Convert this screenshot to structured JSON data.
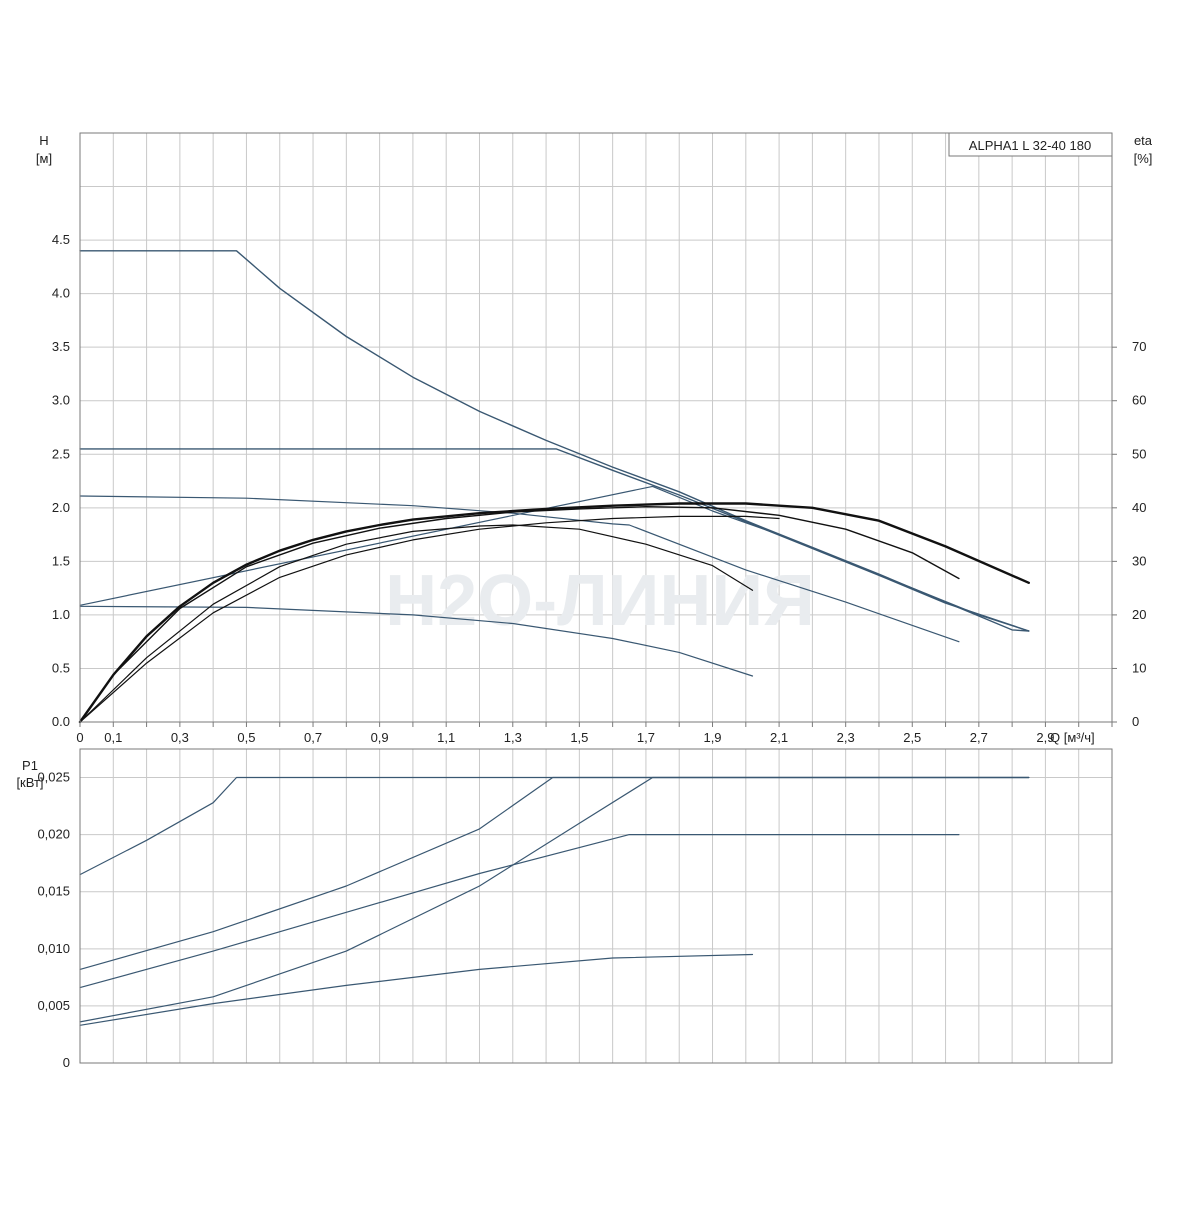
{
  "legend": "ALPHA1 L 32-40 180",
  "watermark": "H2O-ЛИНИЯ",
  "colors": {
    "curve": "#3a5872",
    "eta": "#111111",
    "grid": "#c9c9c9",
    "frame": "#7a7a7a",
    "watermark": "#e9ecef"
  },
  "chart_data": [
    {
      "type": "line",
      "name": "head",
      "ylabel": "H",
      "yunit": "[м]",
      "ylim": [
        0,
        5.5
      ],
      "yticks": [
        0,
        0.5,
        1.0,
        1.5,
        2.0,
        2.5,
        3.0,
        3.5,
        4.0,
        4.5
      ],
      "ytick_labels": [
        "0.0",
        "0.5",
        "1.0",
        "1.5",
        "2.0",
        "2.5",
        "3.0",
        "3.5",
        "4.0",
        "4.5"
      ],
      "xlabel": "Q [м³/ч]",
      "xlim": [
        0,
        3.1
      ],
      "xticks": [
        0,
        0.1,
        0.3,
        0.5,
        0.7,
        0.9,
        1.1,
        1.3,
        1.5,
        1.7,
        1.9,
        2.1,
        2.3,
        2.5,
        2.7,
        2.9
      ],
      "xtick_labels": [
        "0",
        "0,1",
        "0,3",
        "0,5",
        "0,7",
        "0,9",
        "1,1",
        "1,3",
        "1,5",
        "1,7",
        "1,9",
        "2,1",
        "2,3",
        "2,5",
        "2,7",
        "2,9"
      ],
      "x_gridlines": [
        0,
        0.1,
        0.2,
        0.3,
        0.4,
        0.5,
        0.6,
        0.7,
        0.8,
        0.9,
        1.0,
        1.1,
        1.2,
        1.3,
        1.4,
        1.5,
        1.6,
        1.7,
        1.8,
        1.9,
        2.0,
        2.1,
        2.2,
        2.3,
        2.4,
        2.5,
        2.6,
        2.7,
        2.8,
        2.9,
        3.0,
        3.1
      ],
      "y_gridlines": [
        0,
        0.5,
        1.0,
        1.5,
        2.0,
        2.5,
        3.0,
        3.5,
        4.0,
        4.5,
        5.0
      ],
      "y2label": "eta",
      "y2unit": "[%]",
      "y2lim": [
        0,
        110
      ],
      "y2ticks": [
        0,
        10,
        20,
        30,
        40,
        50,
        60,
        70
      ],
      "y2tick_labels": [
        "0",
        "10",
        "20",
        "30",
        "40",
        "50",
        "60",
        "70"
      ],
      "series": [
        {
          "kind": "head",
          "width": 1.4,
          "points": [
            [
              0,
              4.4
            ],
            [
              0.47,
              4.4
            ],
            [
              0.6,
              4.05
            ],
            [
              0.8,
              3.6
            ],
            [
              1.0,
              3.22
            ],
            [
              1.2,
              2.9
            ],
            [
              1.4,
              2.63
            ],
            [
              1.6,
              2.38
            ],
            [
              1.8,
              2.15
            ],
            [
              2.0,
              1.88
            ],
            [
              2.2,
              1.63
            ],
            [
              2.4,
              1.38
            ],
            [
              2.6,
              1.12
            ],
            [
              2.8,
              0.86
            ],
            [
              2.85,
              0.85
            ]
          ]
        },
        {
          "kind": "head",
          "width": 1.4,
          "points": [
            [
              0,
              2.55
            ],
            [
              1.43,
              2.55
            ],
            [
              1.6,
              2.35
            ],
            [
              1.8,
              2.12
            ],
            [
              2.0,
              1.87
            ],
            [
              2.2,
              1.62
            ],
            [
              2.4,
              1.37
            ],
            [
              2.6,
              1.11
            ],
            [
              2.85,
              0.85
            ]
          ]
        },
        {
          "kind": "head",
          "width": 1.2,
          "points": [
            [
              0,
              1.09
            ],
            [
              1.72,
              2.2
            ],
            [
              1.9,
              1.97
            ],
            [
              2.1,
              1.75
            ],
            [
              2.3,
              1.5
            ],
            [
              2.5,
              1.25
            ],
            [
              2.7,
              1.0
            ],
            [
              2.85,
              0.85
            ]
          ]
        },
        {
          "kind": "head",
          "width": 1.2,
          "points": [
            [
              0,
              2.11
            ],
            [
              0.5,
              2.09
            ],
            [
              1.0,
              2.02
            ],
            [
              1.3,
              1.95
            ],
            [
              1.6,
              1.85
            ],
            [
              1.65,
              1.84
            ],
            [
              2.0,
              1.42
            ],
            [
              2.3,
              1.12
            ],
            [
              2.64,
              0.75
            ]
          ]
        },
        {
          "kind": "head",
          "width": 1.2,
          "points": [
            [
              0,
              1.08
            ],
            [
              0.5,
              1.07
            ],
            [
              1.0,
              1.0
            ],
            [
              1.3,
              0.92
            ],
            [
              1.6,
              0.78
            ],
            [
              1.8,
              0.65
            ],
            [
              2.02,
              0.43
            ]
          ]
        },
        {
          "kind": "eta",
          "width": 2.4,
          "points": [
            [
              0,
              0.0
            ],
            [
              0.1,
              0.44
            ],
            [
              0.2,
              0.8
            ],
            [
              0.3,
              1.08
            ],
            [
              0.4,
              1.3
            ],
            [
              0.5,
              1.47
            ],
            [
              0.6,
              1.6
            ],
            [
              0.7,
              1.7
            ],
            [
              0.8,
              1.78
            ],
            [
              0.9,
              1.84
            ],
            [
              1.0,
              1.89
            ],
            [
              1.2,
              1.95
            ],
            [
              1.4,
              1.99
            ],
            [
              1.6,
              2.02
            ],
            [
              1.8,
              2.04
            ],
            [
              2.0,
              2.04
            ],
            [
              2.2,
              2.0
            ],
            [
              2.4,
              1.88
            ],
            [
              2.6,
              1.64
            ],
            [
              2.85,
              1.3
            ]
          ]
        },
        {
          "kind": "eta",
          "width": 1.4,
          "points": [
            [
              0,
              0.0
            ],
            [
              0.1,
              0.44
            ],
            [
              0.3,
              1.06
            ],
            [
              0.5,
              1.45
            ],
            [
              0.7,
              1.67
            ],
            [
              0.9,
              1.81
            ],
            [
              1.1,
              1.9
            ],
            [
              1.3,
              1.96
            ],
            [
              1.5,
              1.99
            ],
            [
              1.7,
              2.01
            ],
            [
              1.9,
              2.0
            ],
            [
              2.1,
              1.93
            ],
            [
              2.3,
              1.8
            ],
            [
              2.5,
              1.58
            ],
            [
              2.64,
              1.34
            ]
          ]
        },
        {
          "kind": "eta",
          "width": 1.2,
          "points": [
            [
              0,
              0.0
            ],
            [
              0.2,
              0.6
            ],
            [
              0.4,
              1.1
            ],
            [
              0.6,
              1.45
            ],
            [
              0.8,
              1.66
            ],
            [
              1.0,
              1.78
            ],
            [
              1.2,
              1.83
            ],
            [
              1.3,
              1.84
            ],
            [
              1.5,
              1.8
            ],
            [
              1.7,
              1.66
            ],
            [
              1.9,
              1.46
            ],
            [
              2.02,
              1.23
            ]
          ]
        },
        {
          "kind": "eta",
          "width": 1.2,
          "points": [
            [
              0,
              0.0
            ],
            [
              0.2,
              0.55
            ],
            [
              0.4,
              1.02
            ],
            [
              0.6,
              1.35
            ],
            [
              0.8,
              1.56
            ],
            [
              1.0,
              1.7
            ],
            [
              1.2,
              1.8
            ],
            [
              1.4,
              1.86
            ],
            [
              1.6,
              1.9
            ],
            [
              1.8,
              1.92
            ],
            [
              2.0,
              1.92
            ],
            [
              2.1,
              1.9
            ]
          ]
        }
      ]
    },
    {
      "type": "line",
      "name": "power",
      "ylabel": "P1",
      "yunit": "[кВт]",
      "ylim": [
        0,
        0.0275
      ],
      "yticks": [
        0,
        0.005,
        0.01,
        0.015,
        0.02,
        0.025
      ],
      "ytick_labels": [
        "0",
        "0,005",
        "0,010",
        "0,015",
        "0,020",
        "0,025"
      ],
      "xlim": [
        0,
        3.1
      ],
      "x_gridlines": [
        0,
        0.1,
        0.2,
        0.3,
        0.4,
        0.5,
        0.6,
        0.7,
        0.8,
        0.9,
        1.0,
        1.1,
        1.2,
        1.3,
        1.4,
        1.5,
        1.6,
        1.7,
        1.8,
        1.9,
        2.0,
        2.1,
        2.2,
        2.3,
        2.4,
        2.5,
        2.6,
        2.7,
        2.8,
        2.9,
        3.0,
        3.1
      ],
      "y_gridlines": [
        0,
        0.005,
        0.01,
        0.015,
        0.02,
        0.025
      ],
      "series": [
        {
          "width": 1.2,
          "points": [
            [
              0,
              0.0165
            ],
            [
              0.2,
              0.0195
            ],
            [
              0.4,
              0.0228
            ],
            [
              0.47,
              0.025
            ],
            [
              2.85,
              0.025
            ]
          ]
        },
        {
          "width": 1.2,
          "points": [
            [
              0,
              0.0082
            ],
            [
              0.4,
              0.0115
            ],
            [
              0.8,
              0.0155
            ],
            [
              1.2,
              0.0205
            ],
            [
              1.42,
              0.025
            ],
            [
              2.85,
              0.025
            ]
          ]
        },
        {
          "width": 1.2,
          "points": [
            [
              0,
              0.0066
            ],
            [
              0.4,
              0.0098
            ],
            [
              0.8,
              0.0132
            ],
            [
              1.2,
              0.0166
            ],
            [
              1.65,
              0.02
            ],
            [
              2.64,
              0.02
            ]
          ]
        },
        {
          "width": 1.2,
          "points": [
            [
              0,
              0.0036
            ],
            [
              0.4,
              0.0058
            ],
            [
              0.8,
              0.0098
            ],
            [
              1.2,
              0.0155
            ],
            [
              1.5,
              0.021
            ],
            [
              1.72,
              0.025
            ],
            [
              2.85,
              0.025
            ]
          ]
        },
        {
          "width": 1.2,
          "points": [
            [
              0,
              0.0033
            ],
            [
              0.4,
              0.0052
            ],
            [
              0.8,
              0.0068
            ],
            [
              1.2,
              0.0082
            ],
            [
              1.6,
              0.0092
            ],
            [
              2.02,
              0.0095
            ]
          ]
        }
      ]
    }
  ]
}
